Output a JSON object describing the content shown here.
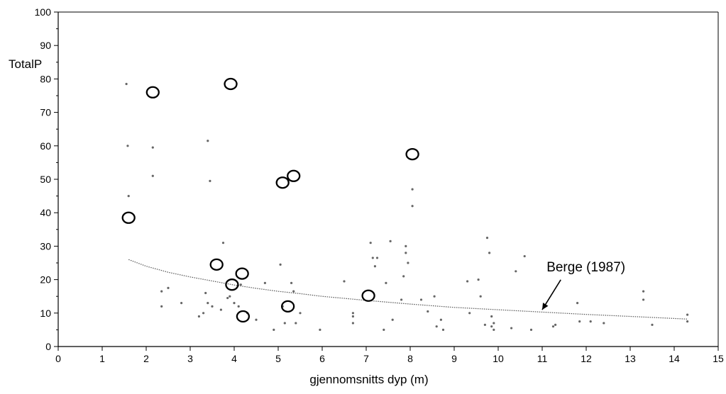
{
  "chart_data": {
    "type": "scatter",
    "xlabel": "gjennomsnitts dyp (m)",
    "ylabel": "TotalP",
    "xlim": [
      0,
      15
    ],
    "ylim": [
      0,
      100
    ],
    "xticks": [
      "0",
      "1",
      "2",
      "3",
      "4",
      "5",
      "6",
      "7",
      "8",
      "9",
      "10",
      "11",
      "12",
      "13",
      "14",
      "15"
    ],
    "yticks": [
      "0",
      "10",
      "20",
      "30",
      "40",
      "50",
      "60",
      "70",
      "80",
      "90",
      "100"
    ],
    "grid": false,
    "circled_points": [
      {
        "x": 1.6,
        "y": 38.5
      },
      {
        "x": 2.15,
        "y": 76
      },
      {
        "x": 3.92,
        "y": 78.5
      },
      {
        "x": 3.6,
        "y": 24.5
      },
      {
        "x": 3.95,
        "y": 18.5
      },
      {
        "x": 4.18,
        "y": 21.8
      },
      {
        "x": 4.2,
        "y": 9
      },
      {
        "x": 5.1,
        "y": 49
      },
      {
        "x": 5.35,
        "y": 51
      },
      {
        "x": 5.22,
        "y": 12
      },
      {
        "x": 7.05,
        "y": 15.2
      },
      {
        "x": 8.05,
        "y": 57.5
      }
    ],
    "small_points": [
      {
        "x": 1.55,
        "y": 78.5
      },
      {
        "x": 1.58,
        "y": 60
      },
      {
        "x": 1.6,
        "y": 45
      },
      {
        "x": 2.15,
        "y": 59.5
      },
      {
        "x": 2.15,
        "y": 51
      },
      {
        "x": 2.35,
        "y": 16.5
      },
      {
        "x": 2.35,
        "y": 12
      },
      {
        "x": 2.5,
        "y": 17.5
      },
      {
        "x": 2.8,
        "y": 13
      },
      {
        "x": 3.2,
        "y": 9
      },
      {
        "x": 3.3,
        "y": 10
      },
      {
        "x": 3.35,
        "y": 16
      },
      {
        "x": 3.4,
        "y": 61.5
      },
      {
        "x": 3.45,
        "y": 49.5
      },
      {
        "x": 3.4,
        "y": 13
      },
      {
        "x": 3.5,
        "y": 12
      },
      {
        "x": 3.75,
        "y": 31
      },
      {
        "x": 3.7,
        "y": 11
      },
      {
        "x": 3.85,
        "y": 14.5
      },
      {
        "x": 3.9,
        "y": 15
      },
      {
        "x": 4.0,
        "y": 13
      },
      {
        "x": 4.1,
        "y": 12
      },
      {
        "x": 4.15,
        "y": 18.5
      },
      {
        "x": 4.3,
        "y": 10
      },
      {
        "x": 4.5,
        "y": 8
      },
      {
        "x": 4.7,
        "y": 19
      },
      {
        "x": 4.9,
        "y": 5
      },
      {
        "x": 5.05,
        "y": 24.5
      },
      {
        "x": 5.1,
        "y": 12
      },
      {
        "x": 5.15,
        "y": 7
      },
      {
        "x": 5.3,
        "y": 19
      },
      {
        "x": 5.35,
        "y": 16.5
      },
      {
        "x": 5.4,
        "y": 7
      },
      {
        "x": 5.5,
        "y": 10
      },
      {
        "x": 5.95,
        "y": 5
      },
      {
        "x": 6.5,
        "y": 19.5
      },
      {
        "x": 6.7,
        "y": 10
      },
      {
        "x": 6.7,
        "y": 9
      },
      {
        "x": 6.7,
        "y": 7
      },
      {
        "x": 7.1,
        "y": 31
      },
      {
        "x": 7.15,
        "y": 26.5
      },
      {
        "x": 7.2,
        "y": 24
      },
      {
        "x": 7.25,
        "y": 26.5
      },
      {
        "x": 7.4,
        "y": 5
      },
      {
        "x": 7.45,
        "y": 19
      },
      {
        "x": 7.55,
        "y": 31.5
      },
      {
        "x": 7.6,
        "y": 8
      },
      {
        "x": 7.8,
        "y": 14
      },
      {
        "x": 7.85,
        "y": 21
      },
      {
        "x": 7.9,
        "y": 30
      },
      {
        "x": 7.9,
        "y": 28
      },
      {
        "x": 7.95,
        "y": 25
      },
      {
        "x": 8.05,
        "y": 47
      },
      {
        "x": 8.05,
        "y": 42
      },
      {
        "x": 8.25,
        "y": 14
      },
      {
        "x": 8.4,
        "y": 10.5
      },
      {
        "x": 8.55,
        "y": 15
      },
      {
        "x": 8.6,
        "y": 6
      },
      {
        "x": 8.7,
        "y": 8
      },
      {
        "x": 8.75,
        "y": 5
      },
      {
        "x": 9.3,
        "y": 19.5
      },
      {
        "x": 9.35,
        "y": 10
      },
      {
        "x": 9.55,
        "y": 20
      },
      {
        "x": 9.6,
        "y": 15
      },
      {
        "x": 9.7,
        "y": 6.5
      },
      {
        "x": 9.75,
        "y": 32.5
      },
      {
        "x": 9.8,
        "y": 28
      },
      {
        "x": 9.85,
        "y": 6
      },
      {
        "x": 9.85,
        "y": 9
      },
      {
        "x": 9.9,
        "y": 5
      },
      {
        "x": 9.9,
        "y": 7
      },
      {
        "x": 10.3,
        "y": 5.5
      },
      {
        "x": 10.4,
        "y": 22.5
      },
      {
        "x": 10.6,
        "y": 27
      },
      {
        "x": 10.75,
        "y": 5
      },
      {
        "x": 11.25,
        "y": 6
      },
      {
        "x": 11.3,
        "y": 6.5
      },
      {
        "x": 11.8,
        "y": 13
      },
      {
        "x": 11.85,
        "y": 7.5
      },
      {
        "x": 12.1,
        "y": 7.5
      },
      {
        "x": 12.4,
        "y": 7
      },
      {
        "x": 13.3,
        "y": 16.5
      },
      {
        "x": 13.3,
        "y": 14
      },
      {
        "x": 13.5,
        "y": 6.5
      },
      {
        "x": 14.3,
        "y": 9.5
      },
      {
        "x": 14.3,
        "y": 7.5
      }
    ],
    "trend_line": {
      "name": "Berge (1987)",
      "points": [
        {
          "x": 1.6,
          "y": 26
        },
        {
          "x": 2,
          "y": 24
        },
        {
          "x": 2.5,
          "y": 22.2
        },
        {
          "x": 3,
          "y": 20.8
        },
        {
          "x": 3.5,
          "y": 19.6
        },
        {
          "x": 4,
          "y": 18.4
        },
        {
          "x": 4.5,
          "y": 17.4
        },
        {
          "x": 5,
          "y": 16.5
        },
        {
          "x": 5.5,
          "y": 15.8
        },
        {
          "x": 6,
          "y": 15
        },
        {
          "x": 6.5,
          "y": 14.4
        },
        {
          "x": 7,
          "y": 13.8
        },
        {
          "x": 8,
          "y": 12.7
        },
        {
          "x": 9,
          "y": 11.7
        },
        {
          "x": 10,
          "y": 11
        },
        {
          "x": 11,
          "y": 10.3
        },
        {
          "x": 12,
          "y": 9.6
        },
        {
          "x": 13,
          "y": 9
        },
        {
          "x": 14,
          "y": 8.4
        },
        {
          "x": 14.3,
          "y": 8.2
        }
      ]
    },
    "annotations": [
      {
        "text": "Berge (1987)",
        "x": 11.1,
        "y": 22.5,
        "arrow_to": {
          "x": 11.0,
          "y": 11.0
        }
      }
    ]
  }
}
